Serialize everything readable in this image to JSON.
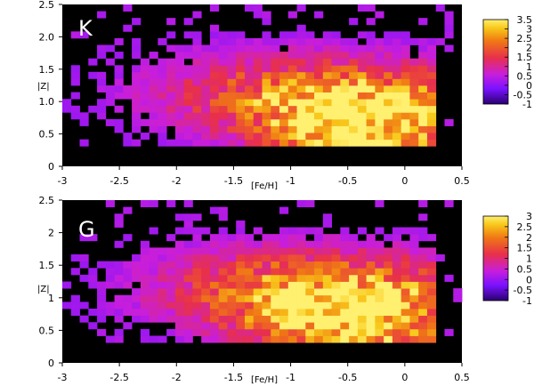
{
  "chart_data": [
    {
      "type": "heatmap",
      "panel_label": "K",
      "xlabel": "[Fe/H]",
      "ylabel": "|Z|",
      "xlim": [
        -3,
        0.5
      ],
      "ylim": [
        0,
        2.5
      ],
      "x_ticks": [
        "-3",
        "-2.5",
        "-2",
        "-1.5",
        "-1",
        "-0.5",
        "0",
        "0.5"
      ],
      "y_ticks": [
        "0",
        "0.5",
        "1.0",
        "1.5",
        "2.0",
        "2.5"
      ],
      "colorbar": {
        "range": [
          -1,
          3.5
        ],
        "ticks": [
          "3.5",
          "3",
          "2.5",
          "2",
          "1.5",
          "1",
          "0.5",
          "0",
          "-0.5",
          "-1"
        ]
      },
      "density_peak": {
        "feh": -0.35,
        "z": 0.7
      },
      "background_color": "#000000"
    },
    {
      "type": "heatmap",
      "panel_label": "G",
      "xlabel": "[Fe/H]",
      "ylabel": "|Z|",
      "xlim": [
        -3,
        0.5
      ],
      "ylim": [
        0,
        2.5
      ],
      "x_ticks": [
        "-3",
        "-2.5",
        "-2",
        "-1.5",
        "-1",
        "-0.5",
        "0",
        "0.5"
      ],
      "y_ticks": [
        "0",
        "0.5",
        "1",
        "1.5",
        "2",
        "2.5"
      ],
      "colorbar": {
        "range": [
          -1,
          3
        ],
        "ticks": [
          "3",
          "2.5",
          "2",
          "1.5",
          "1",
          "0.5",
          "0",
          "-0.5",
          "-1"
        ]
      },
      "density_peak": {
        "feh": -0.45,
        "z": 0.75
      },
      "background_color": "#000000"
    }
  ]
}
